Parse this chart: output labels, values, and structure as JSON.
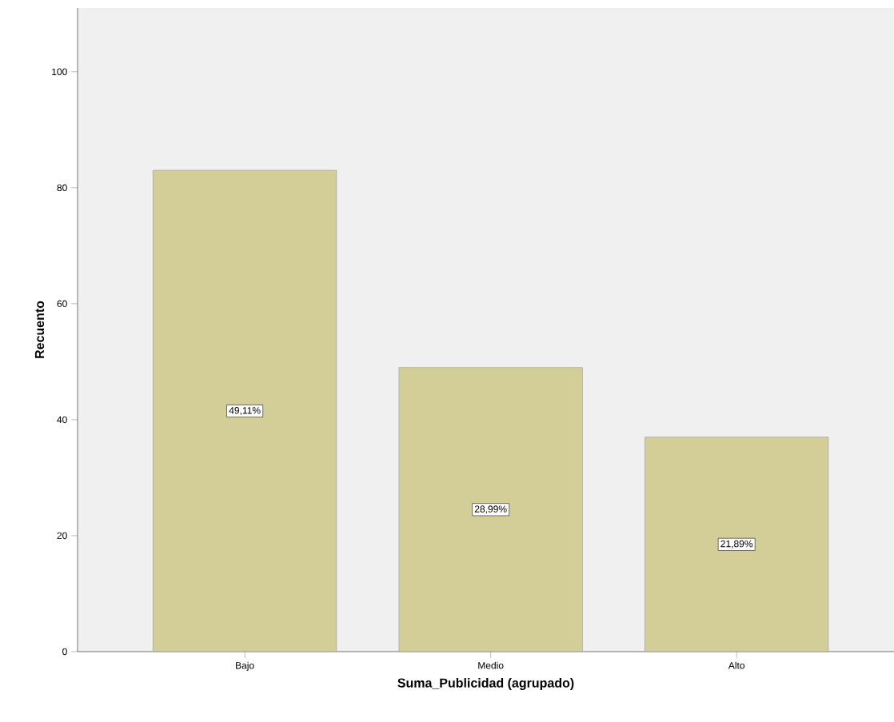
{
  "chart_data": {
    "type": "bar",
    "xlabel": "Suma_Publicidad (agrupado)",
    "ylabel": "Recuento",
    "categories": [
      "Bajo",
      "Medio",
      "Alto"
    ],
    "values": [
      83,
      49,
      37
    ],
    "annotations": [
      "49,11%",
      "28,99%",
      "21,89%"
    ],
    "color": "#d3ce97",
    "ylim": [
      0,
      111
    ],
    "yticks": [
      0,
      20,
      40,
      60,
      80,
      100
    ]
  }
}
